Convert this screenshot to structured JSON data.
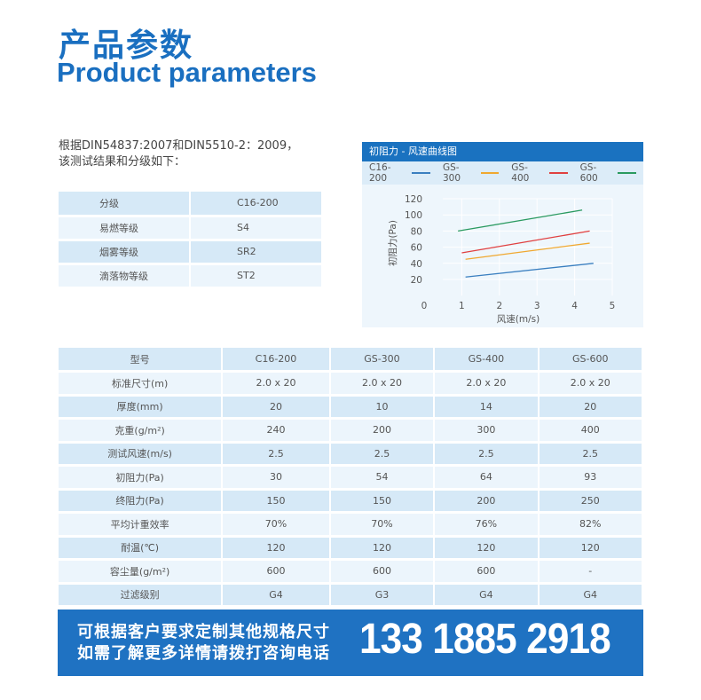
{
  "title_cn": "产品参数",
  "title_en": "Product parameters",
  "intro": [
    "根据DIN54837:2007和DIN5510-2：2009，",
    "该测试结果和分级如下："
  ],
  "grade_table": [
    [
      "分级",
      "C16-200"
    ],
    [
      "易燃等级",
      "S4"
    ],
    [
      "烟雾等级",
      "SR2"
    ],
    [
      "滴落物等级",
      "ST2"
    ]
  ],
  "chart_data": {
    "type": "line",
    "title": "初阻力 - 风速曲线图",
    "xlabel": "风速(m/s)",
    "ylabel": "初阻力(Pa)",
    "xlim": [
      0,
      5
    ],
    "ylim": [
      0,
      120
    ],
    "xticks": [
      0,
      1,
      2,
      3,
      4,
      5
    ],
    "yticks": [
      20,
      40,
      60,
      80,
      100,
      120
    ],
    "grid": true,
    "legend": "top",
    "series": [
      {
        "name": "C16-200",
        "color": "#3a7fc0",
        "x": [
          1.1,
          4.5
        ],
        "y": [
          23,
          40
        ]
      },
      {
        "name": "GS-300",
        "color": "#f0a830",
        "x": [
          1.1,
          4.4
        ],
        "y": [
          45,
          65
        ]
      },
      {
        "name": "GS-400",
        "color": "#e04040",
        "x": [
          1.0,
          4.4
        ],
        "y": [
          53,
          80
        ]
      },
      {
        "name": "GS-600",
        "color": "#2a9a60",
        "x": [
          0.9,
          4.2
        ],
        "y": [
          80,
          106
        ]
      }
    ]
  },
  "param_table": [
    [
      "型号",
      "C16-200",
      "GS-300",
      "GS-400",
      "GS-600"
    ],
    [
      "标准尺寸(m)",
      "2.0 x 20",
      "2.0 x 20",
      "2.0 x 20",
      "2.0 x 20"
    ],
    [
      "厚度(mm)",
      "20",
      "10",
      "14",
      "20"
    ],
    [
      "克重(g/m²)",
      "240",
      "200",
      "300",
      "400"
    ],
    [
      "测试风速(m/s)",
      "2.5",
      "2.5",
      "2.5",
      "2.5"
    ],
    [
      "初阻力(Pa)",
      "30",
      "54",
      "64",
      "93"
    ],
    [
      "终阻力(Pa)",
      "150",
      "150",
      "200",
      "250"
    ],
    [
      "平均计重效率",
      "70%",
      "70%",
      "76%",
      "82%"
    ],
    [
      "耐温(℃)",
      "120",
      "120",
      "120",
      "120"
    ],
    [
      "容尘量(g/m²)",
      "600",
      "600",
      "600",
      "-"
    ],
    [
      "过滤级别",
      "G4",
      "G3",
      "G4",
      "G4"
    ]
  ],
  "banner": {
    "line1": "可根据客户要求定制其他规格尺寸",
    "line2": "如需了解更多详情请拨打咨询电话",
    "phone": "133 1885 2918"
  },
  "colors": {
    "brand": "#1a6fc0"
  }
}
